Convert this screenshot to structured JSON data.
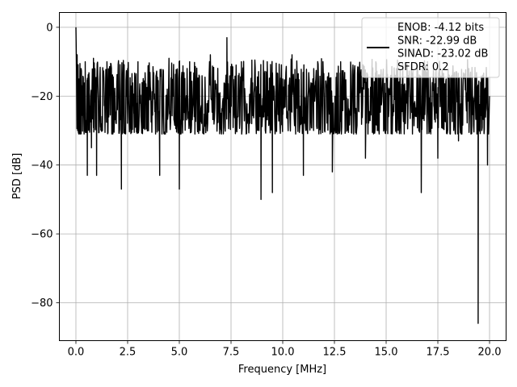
{
  "chart_data": {
    "type": "line",
    "xlabel": "Frequency [MHz]",
    "ylabel": "PSD [dB]",
    "xlim": [
      -0.8,
      20.8
    ],
    "ylim": [
      -91,
      4.3
    ],
    "xticks": [
      0.0,
      2.5,
      5.0,
      7.5,
      10.0,
      12.5,
      15.0,
      17.5,
      20.0
    ],
    "xtick_labels": [
      "0.0",
      "2.5",
      "5.0",
      "7.5",
      "10.0",
      "12.5",
      "15.0",
      "17.5",
      "20.0"
    ],
    "yticks": [
      0,
      -20,
      -40,
      -60,
      -80
    ],
    "ytick_labels": [
      "0",
      "−20",
      "−40",
      "−60",
      "−80"
    ],
    "grid": true,
    "legend_position": "upper right",
    "series": [
      {
        "name": "ENOB: -4.12 bits\nSNR: -22.99 dB\nSINAD: -23.02 dB\nSFDR: 0.2",
        "color": "#000000",
        "noise_floor_range": [
          -31,
          -9
        ],
        "x": [
          0.0,
          0.03,
          0.06,
          0.1,
          0.15,
          0.2,
          0.25,
          0.3,
          0.45,
          0.55,
          0.62,
          0.75,
          0.85,
          1.0,
          1.05,
          1.2,
          1.5,
          1.75,
          2.0,
          2.2,
          2.5,
          2.8,
          3.0,
          3.5,
          4.05,
          4.5,
          4.7,
          5.0,
          5.5,
          6.0,
          6.5,
          7.0,
          7.3,
          7.5,
          8.0,
          8.5,
          8.95,
          9.25,
          9.5,
          10.0,
          10.45,
          11.0,
          11.5,
          12.0,
          12.4,
          12.8,
          13.5,
          14.0,
          14.5,
          15.0,
          15.5,
          16.0,
          16.7,
          17.0,
          17.5,
          17.9,
          18.5,
          19.0,
          19.45,
          19.6,
          19.9,
          20.0
        ],
        "values": [
          0.0,
          -12,
          -8,
          -27,
          -15,
          -31,
          -12,
          -20,
          -10,
          -43,
          -14,
          -35,
          -9,
          -43,
          -12,
          -28,
          -10,
          -31,
          -18,
          -47,
          -12,
          -25,
          -10,
          -28,
          -43,
          -9,
          -20,
          -47,
          -10,
          -30,
          -8,
          -25,
          -3,
          -20,
          -10,
          -28,
          -50,
          -10,
          -48,
          -15,
          -8,
          -43,
          -12,
          -20,
          -42,
          -10,
          -25,
          -38,
          -10,
          -30,
          -12,
          -22,
          -48,
          -10,
          -38,
          -15,
          -33,
          -12,
          -86,
          -20,
          -40,
          -20
        ]
      }
    ]
  }
}
